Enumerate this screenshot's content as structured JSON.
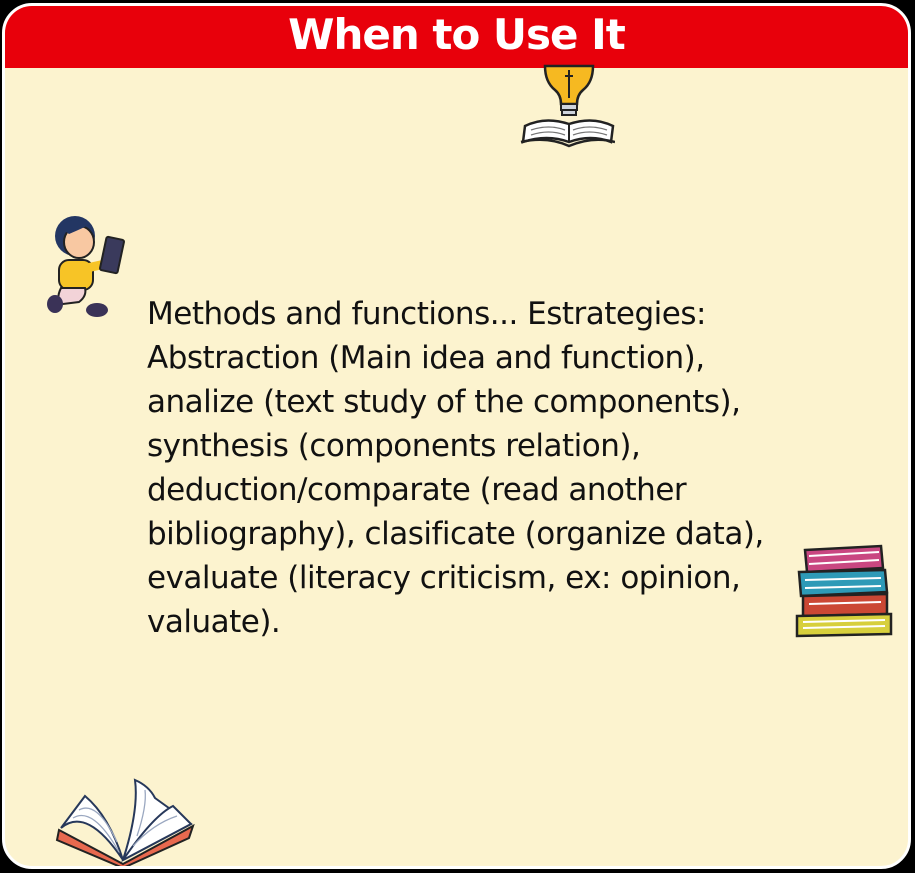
{
  "slide": {
    "title": "When to Use It",
    "body_lines": [
      "Methods and functions... Estrategies:",
      "Abstraction (Main idea and function),",
      "analize (text study of the components),",
      "synthesis (components relation),",
      "deduction/comparate (read another",
      "bibliography), clasificate (organize data),",
      "evaluate (literacy criticism, ex: opinion,",
      "valuate)."
    ]
  },
  "colors": {
    "banner": "#e8000b",
    "background": "#fcf3cf",
    "text": "#111111"
  },
  "icons": [
    "lightbulb-book-icon",
    "reading-child-icon",
    "book-stack-icon",
    "open-book-icon"
  ]
}
